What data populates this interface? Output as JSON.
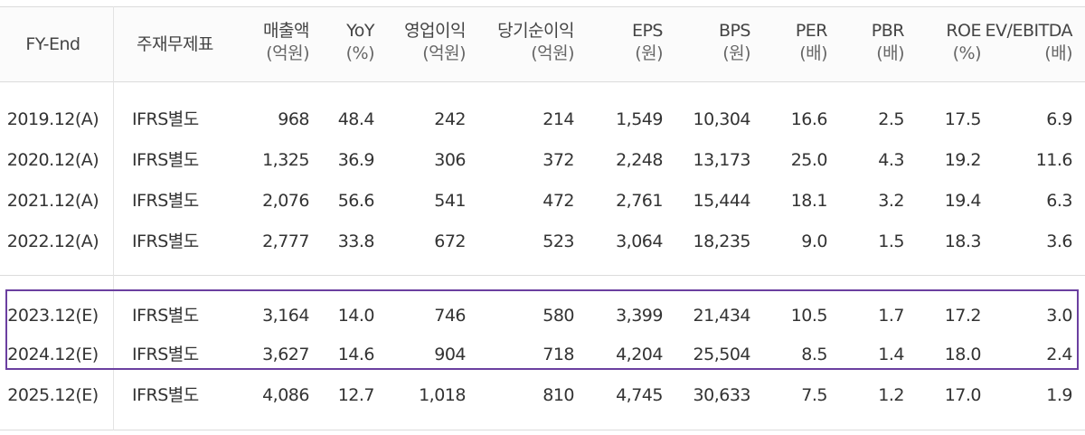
{
  "columns": [
    {
      "label": "FY-End",
      "unit": ""
    },
    {
      "label": "주재무제표",
      "unit": ""
    },
    {
      "label": "매출액",
      "unit": "(억원)"
    },
    {
      "label": "YoY",
      "unit": "(%)"
    },
    {
      "label": "영업이익",
      "unit": "(억원)"
    },
    {
      "label": "당기순이익",
      "unit": "(억원)"
    },
    {
      "label": "EPS",
      "unit": "(원)"
    },
    {
      "label": "BPS",
      "unit": "(원)"
    },
    {
      "label": "PER",
      "unit": "(배)"
    },
    {
      "label": "PBR",
      "unit": "(배)"
    },
    {
      "label": "ROE",
      "unit": "(%)"
    },
    {
      "label": "EV/EBITDA",
      "unit": "(배)"
    }
  ],
  "rows": [
    [
      "2019.12(A)",
      "IFRS별도",
      "968",
      "48.4",
      "242",
      "214",
      "1,549",
      "10,304",
      "16.6",
      "2.5",
      "17.5",
      "6.9"
    ],
    [
      "2020.12(A)",
      "IFRS별도",
      "1,325",
      "36.9",
      "306",
      "372",
      "2,248",
      "13,173",
      "25.0",
      "4.3",
      "19.2",
      "11.6"
    ],
    [
      "2021.12(A)",
      "IFRS별도",
      "2,076",
      "56.6",
      "541",
      "472",
      "2,761",
      "15,444",
      "18.1",
      "3.2",
      "19.4",
      "6.3"
    ],
    [
      "2022.12(A)",
      "IFRS별도",
      "2,777",
      "33.8",
      "672",
      "523",
      "3,064",
      "18,235",
      "9.0",
      "1.5",
      "18.3",
      "3.6"
    ],
    [
      "2023.12(E)",
      "IFRS별도",
      "3,164",
      "14.0",
      "746",
      "580",
      "3,399",
      "21,434",
      "10.5",
      "1.7",
      "17.2",
      "3.0"
    ],
    [
      "2024.12(E)",
      "IFRS별도",
      "3,627",
      "14.6",
      "904",
      "718",
      "4,204",
      "25,504",
      "8.5",
      "1.4",
      "18.0",
      "2.4"
    ],
    [
      "2025.12(E)",
      "IFRS별도",
      "4,086",
      "12.7",
      "1,018",
      "810",
      "4,745",
      "30,633",
      "7.5",
      "1.2",
      "17.0",
      "1.9"
    ]
  ],
  "colors": {
    "highlight_border": "#6b3fa0",
    "grid": "#dcdcdc"
  }
}
